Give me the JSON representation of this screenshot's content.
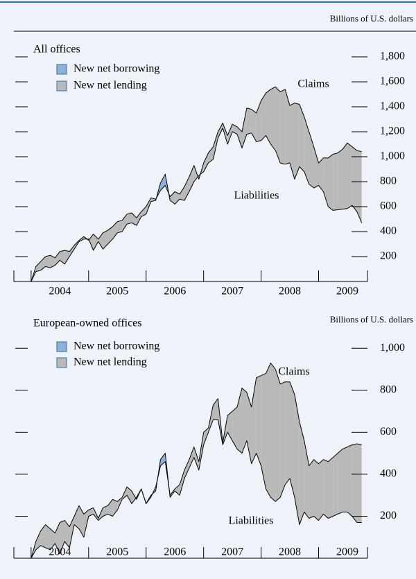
{
  "chart_data": [
    {
      "type": "area-between",
      "title": "All offices",
      "unit_label": "Billions of U.S. dollars",
      "fill_legend": [
        {
          "name": "New net borrowing",
          "color": "#8fb0d8"
        },
        {
          "name": "New net lending",
          "color": "#b9b9b9"
        }
      ],
      "categories": [
        "2004",
        "2005",
        "2006",
        "2007",
        "2008",
        "2009"
      ],
      "x": [
        2004.0,
        2004.083,
        2004.167,
        2004.25,
        2004.333,
        2004.417,
        2004.5,
        2004.583,
        2004.667,
        2004.75,
        2004.833,
        2004.917,
        2005.0,
        2005.083,
        2005.167,
        2005.25,
        2005.333,
        2005.417,
        2005.5,
        2005.583,
        2005.667,
        2005.75,
        2005.833,
        2005.917,
        2006.0,
        2006.083,
        2006.167,
        2006.25,
        2006.333,
        2006.417,
        2006.5,
        2006.583,
        2006.667,
        2006.75,
        2006.833,
        2006.917,
        2007.0,
        2007.083,
        2007.167,
        2007.25,
        2007.333,
        2007.417,
        2007.5,
        2007.583,
        2007.667,
        2007.75,
        2007.833,
        2007.917,
        2008.0,
        2008.083,
        2008.167,
        2008.25,
        2008.333,
        2008.417,
        2008.5,
        2008.583,
        2008.667,
        2008.75,
        2008.833,
        2008.917,
        2009.0,
        2009.083,
        2009.167,
        2009.25,
        2009.333,
        2009.417,
        2009.5,
        2009.583,
        2009.667,
        2009.75
      ],
      "series": [
        {
          "name": "Claims",
          "color": "#000000",
          "values": [
            0,
            120,
            160,
            200,
            210,
            190,
            240,
            250,
            240,
            290,
            330,
            360,
            330,
            380,
            340,
            390,
            410,
            440,
            480,
            490,
            540,
            550,
            510,
            560,
            600,
            670,
            660,
            730,
            770,
            680,
            720,
            700,
            760,
            840,
            930,
            820,
            950,
            1030,
            1080,
            1200,
            1270,
            1170,
            1260,
            1240,
            1200,
            1390,
            1380,
            1350,
            1450,
            1510,
            1540,
            1560,
            1520,
            1540,
            1410,
            1430,
            1420,
            1320,
            1200,
            1080,
            950,
            990,
            990,
            1020,
            1030,
            1060,
            1110,
            1080,
            1050,
            1040
          ]
        },
        {
          "name": "Liabilities",
          "color": "#000000",
          "values": [
            0,
            80,
            90,
            120,
            110,
            130,
            170,
            140,
            200,
            260,
            320,
            340,
            340,
            250,
            320,
            260,
            300,
            340,
            390,
            400,
            460,
            470,
            450,
            520,
            540,
            640,
            650,
            790,
            860,
            650,
            620,
            660,
            650,
            720,
            800,
            850,
            880,
            950,
            980,
            1150,
            1230,
            1100,
            1200,
            1180,
            1070,
            1180,
            1190,
            1120,
            1130,
            1170,
            1100,
            1050,
            950,
            940,
            950,
            820,
            920,
            880,
            780,
            750,
            770,
            720,
            600,
            570,
            575,
            580,
            585,
            610,
            560,
            470
          ]
        }
      ],
      "xlim": [
        2003.7,
        2009.85
      ],
      "xticks": [
        2004,
        2005,
        2006,
        2007,
        2008,
        2009
      ],
      "ylim": [
        0,
        1950
      ],
      "yticks": [
        200,
        400,
        600,
        800,
        {
          "value": 1000,
          "label": "1,000"
        },
        {
          "value": 1200,
          "label": "1,200"
        },
        {
          "value": 1400,
          "label": "1,400"
        },
        {
          "value": 1600,
          "label": "1,600"
        },
        {
          "value": 1800,
          "label": "1,800"
        }
      ]
    },
    {
      "type": "area-between",
      "title": "European-owned offices",
      "unit_label": "Billions of U.S. dollars",
      "fill_legend": [
        {
          "name": "New net borrowing",
          "color": "#8fb0d8"
        },
        {
          "name": "New net lending",
          "color": "#b9b9b9"
        }
      ],
      "categories": [
        "2004",
        "2005",
        "2006",
        "2007",
        "2008",
        "2009"
      ],
      "x": [
        2004.0,
        2004.083,
        2004.167,
        2004.25,
        2004.333,
        2004.417,
        2004.5,
        2004.583,
        2004.667,
        2004.75,
        2004.833,
        2004.917,
        2005.0,
        2005.083,
        2005.167,
        2005.25,
        2005.333,
        2005.417,
        2005.5,
        2005.583,
        2005.667,
        2005.75,
        2005.833,
        2005.917,
        2006.0,
        2006.083,
        2006.167,
        2006.25,
        2006.333,
        2006.417,
        2006.5,
        2006.583,
        2006.667,
        2006.75,
        2006.833,
        2006.917,
        2007.0,
        2007.083,
        2007.167,
        2007.25,
        2007.333,
        2007.417,
        2007.5,
        2007.583,
        2007.667,
        2007.75,
        2007.833,
        2007.917,
        2008.0,
        2008.083,
        2008.167,
        2008.25,
        2008.333,
        2008.417,
        2008.5,
        2008.583,
        2008.667,
        2008.75,
        2008.833,
        2008.917,
        2009.0,
        2009.083,
        2009.167,
        2009.25,
        2009.333,
        2009.417,
        2009.5,
        2009.583,
        2009.667,
        2009.75
      ],
      "series": [
        {
          "name": "Claims",
          "color": "#000000",
          "values": [
            0,
            80,
            130,
            160,
            140,
            120,
            170,
            180,
            150,
            200,
            250,
            210,
            230,
            240,
            190,
            240,
            250,
            280,
            270,
            290,
            340,
            320,
            280,
            330,
            260,
            290,
            340,
            440,
            460,
            300,
            330,
            350,
            420,
            470,
            530,
            460,
            600,
            620,
            730,
            760,
            550,
            680,
            700,
            720,
            810,
            790,
            720,
            860,
            870,
            880,
            930,
            900,
            830,
            840,
            840,
            780,
            650,
            560,
            440,
            470,
            450,
            470,
            460,
            480,
            500,
            520,
            530,
            540,
            545,
            540
          ]
        },
        {
          "name": "Liabilities",
          "color": "#000000",
          "values": [
            0,
            40,
            60,
            50,
            40,
            70,
            20,
            80,
            50,
            160,
            140,
            100,
            200,
            210,
            180,
            200,
            210,
            200,
            230,
            280,
            300,
            260,
            290,
            330,
            260,
            300,
            320,
            470,
            500,
            290,
            320,
            300,
            380,
            430,
            480,
            420,
            540,
            600,
            660,
            660,
            540,
            600,
            560,
            520,
            500,
            560,
            450,
            500,
            440,
            330,
            290,
            270,
            290,
            350,
            380,
            290,
            160,
            220,
            190,
            200,
            180,
            210,
            190,
            200,
            210,
            220,
            220,
            200,
            170,
            170
          ]
        }
      ],
      "xlim": [
        2003.7,
        2009.85
      ],
      "xticks": [
        2004,
        2005,
        2006,
        2007,
        2008,
        2009
      ],
      "ylim": [
        0,
        1100
      ],
      "yticks": [
        200,
        400,
        600,
        800,
        {
          "value": 1000,
          "label": "1,000"
        }
      ]
    }
  ]
}
